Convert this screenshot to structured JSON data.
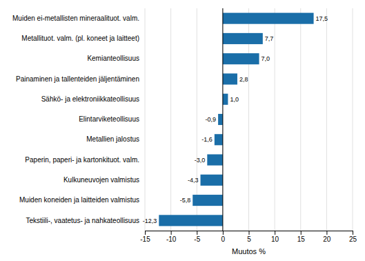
{
  "chart_data": {
    "type": "bar",
    "orientation": "horizontal",
    "categories": [
      "Tekstiili-, vaatetus- ja nahkateollisuus",
      "Muiden koneiden ja laitteiden valmistus",
      "Kulkuneuvojen valmistus",
      "Paperin, paperi- ja kartonkituot. valm.",
      "Metallien jalostus",
      "Elintarviketeollisuus",
      "Sähkö- ja elektroniikkateollisuus",
      "Painaminen ja tallenteiden jäljentäminen",
      "Kemianteollisuus",
      "Metallituot. valm. (pl. koneet ja laitteet)",
      "Muiden ei-metallisten mineraalituot. valm."
    ],
    "values": [
      -12.3,
      -5.8,
      -4.3,
      -3.0,
      -1.6,
      -0.9,
      1.0,
      2.8,
      7.0,
      7.7,
      17.5
    ],
    "value_labels": [
      "-12,3",
      "-5,8",
      "-4,3",
      "-3,0",
      "-1,6",
      "-0,9",
      "1,0",
      "2,8",
      "7,0",
      "7,7",
      "17,5"
    ],
    "data_labels": true,
    "color": "#1a6ea8",
    "xlabel": "Muutos %",
    "xlim": [
      -15,
      25
    ],
    "xticks": [
      -15,
      -10,
      -5,
      0,
      5,
      10,
      15,
      20,
      25
    ],
    "grid": true
  }
}
